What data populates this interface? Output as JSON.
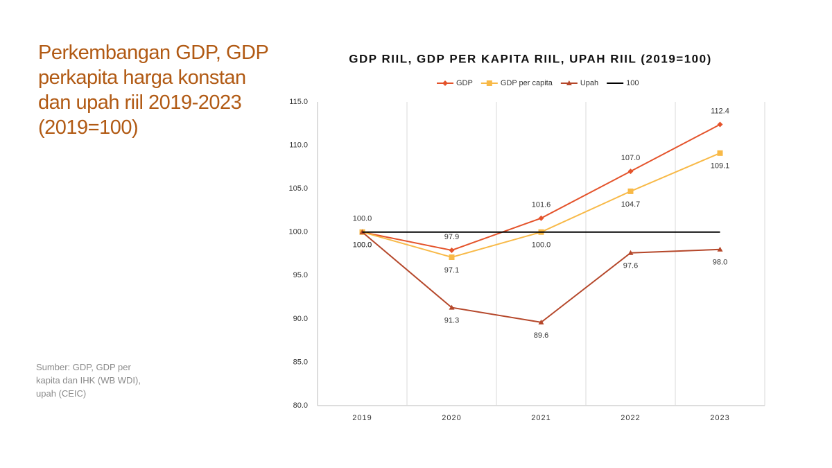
{
  "heading": "Perkembangan GDP, GDP perkapita harga konstan dan upah riil 2019-2023 (2019=100)",
  "source": "Sumber: GDP, GDP per kapita dan IHK (WB WDI), upah (CEIC)",
  "chart_data": {
    "type": "line",
    "title": "GDP RIIL, GDP PER KAPITA RIIL, UPAH RIIL (2019=100)",
    "categories": [
      "2019",
      "2020",
      "2021",
      "2022",
      "2023"
    ],
    "series": [
      {
        "name": "GDP",
        "color": "#e4532b",
        "marker": "diamond",
        "label_position": "above",
        "values": [
          100.0,
          97.9,
          101.6,
          107.0,
          112.4
        ],
        "value_labels": [
          "100.0",
          "97.9",
          "101.6",
          "107.0",
          "112.4"
        ]
      },
      {
        "name": "GDP per capita",
        "color": "#f8b947",
        "marker": "square",
        "label_position": "below",
        "values": [
          100.0,
          97.1,
          100.0,
          104.7,
          109.1
        ],
        "value_labels": [
          "100.0",
          "97.1",
          "100.0",
          "104.7",
          "109.1"
        ]
      },
      {
        "name": "Upah",
        "color": "#b5472a",
        "marker": "triangle",
        "label_position": "below",
        "values": [
          100.0,
          91.3,
          89.6,
          97.6,
          98.0
        ],
        "value_labels": [
          "100.0",
          "91.3",
          "89.6",
          "97.6",
          "98.0"
        ]
      },
      {
        "name": "100",
        "color": "#000000",
        "marker": "none",
        "values": [
          100,
          100,
          100,
          100,
          100
        ]
      }
    ],
    "ylim": [
      80,
      115
    ],
    "yticks": [
      {
        "value": 80,
        "label": "80.0"
      },
      {
        "value": 85,
        "label": "85.0"
      },
      {
        "value": 90,
        "label": "90.0"
      },
      {
        "value": 95,
        "label": "95.0"
      },
      {
        "value": 100,
        "label": "100.0"
      },
      {
        "value": 105,
        "label": "105.0"
      },
      {
        "value": 110,
        "label": "110.0"
      },
      {
        "value": 115,
        "label": "115.0"
      }
    ],
    "grid": "vertical",
    "legend": "top"
  }
}
